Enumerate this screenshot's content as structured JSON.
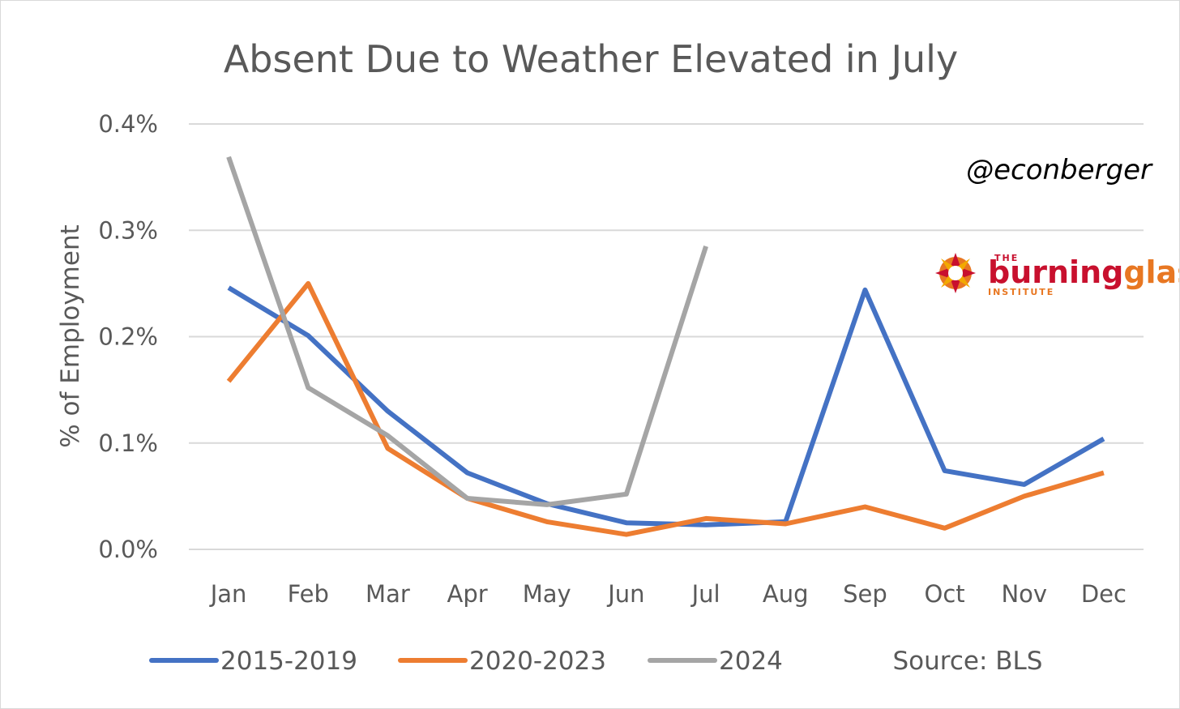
{
  "chart_data": {
    "type": "line",
    "title": "Absent Due to Weather Elevated in July",
    "ylabel": "% of Employment",
    "xlabel": "",
    "categories": [
      "Jan",
      "Feb",
      "Mar",
      "Apr",
      "May",
      "Jun",
      "Jul",
      "Aug",
      "Sep",
      "Oct",
      "Nov",
      "Dec"
    ],
    "ylim": [
      0,
      0.4
    ],
    "yticks": [
      0,
      0.1,
      0.2,
      0.3,
      0.4
    ],
    "ytick_labels": [
      "0.0%",
      "0.1%",
      "0.2%",
      "0.3%",
      "0.4%"
    ],
    "grid": true,
    "legend_position": "bottom",
    "series": [
      {
        "name": "2015-2019",
        "color": "#4472c4",
        "values": [
          0.246,
          0.201,
          0.13,
          0.072,
          0.043,
          0.025,
          0.023,
          0.026,
          0.244,
          0.074,
          0.061,
          0.104
        ]
      },
      {
        "name": "2020-2023",
        "color": "#ed7d31",
        "values": [
          0.158,
          0.25,
          0.095,
          0.048,
          0.026,
          0.014,
          0.029,
          0.024,
          0.04,
          0.02,
          0.05,
          0.072
        ]
      },
      {
        "name": "2024",
        "color": "#a5a5a5",
        "values": [
          0.369,
          0.152,
          0.107,
          0.048,
          0.042,
          0.052,
          0.285,
          null,
          null,
          null,
          null,
          null
        ]
      }
    ],
    "source": "Source: BLS",
    "annotations": {
      "handle": "@econberger",
      "logo": {
        "top": "THE",
        "word1": "burning",
        "word2": "glass",
        "bottom": "INSTITUTE",
        "color1": "#c8102e",
        "color2": "#e87722"
      }
    }
  }
}
